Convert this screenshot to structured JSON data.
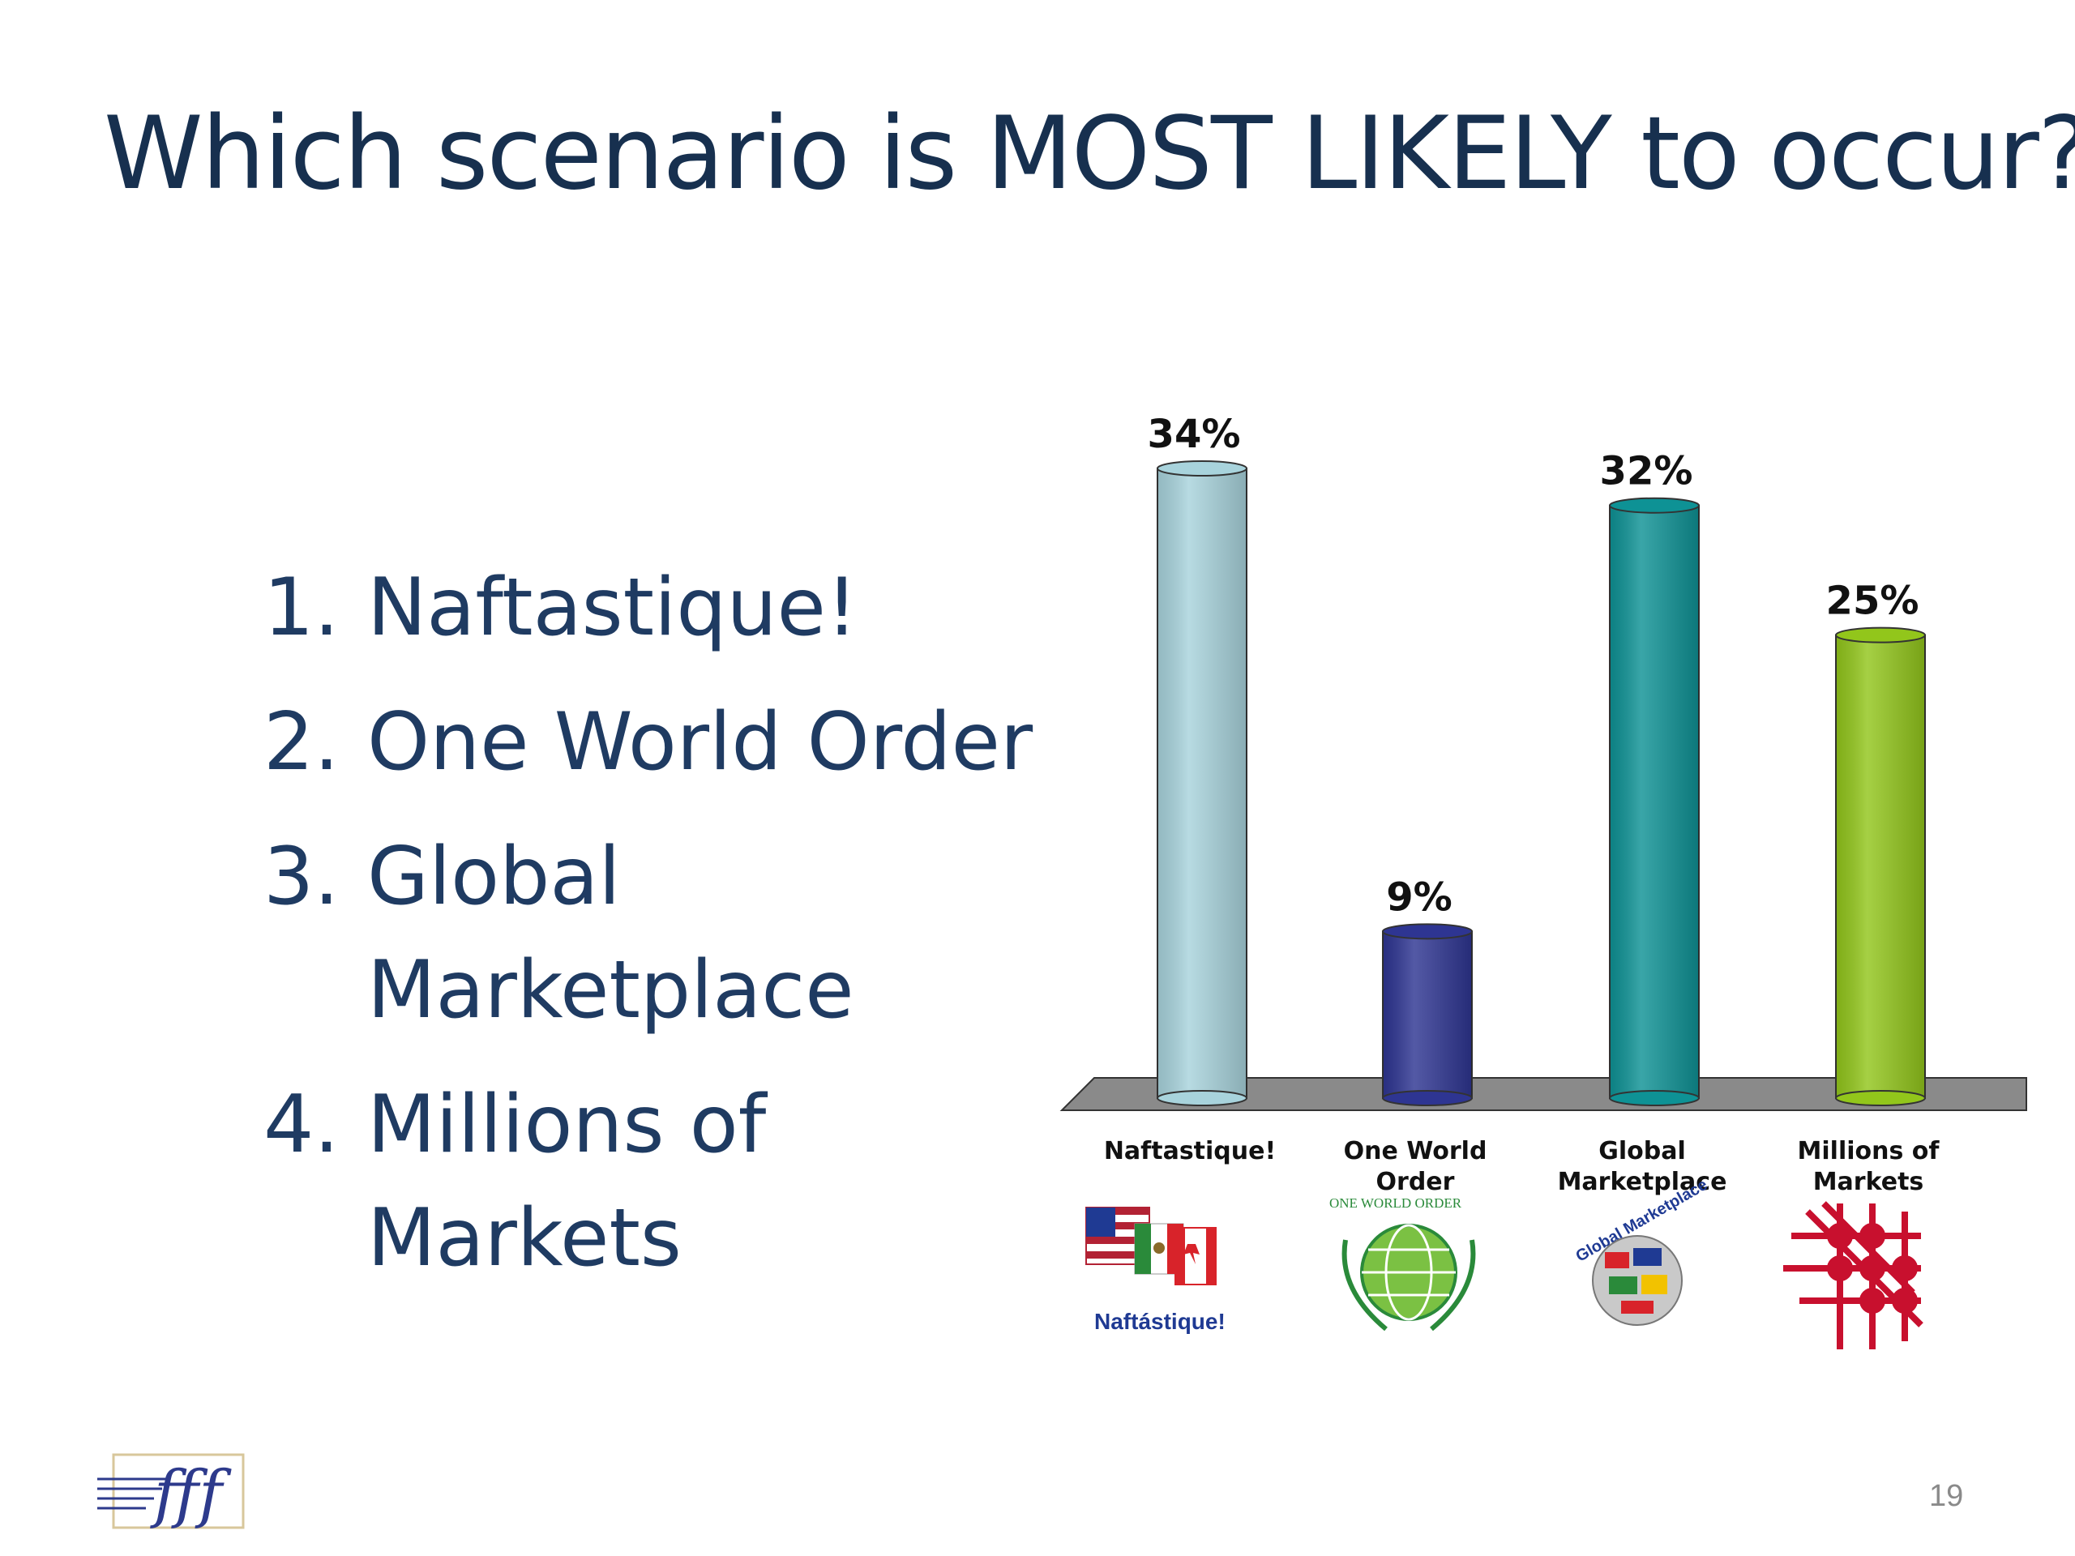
{
  "slide": {
    "title": "Which scenario is MOST LIKELY to occur?",
    "options": [
      {
        "num": "1.",
        "text": "Naftastique!"
      },
      {
        "num": "2.",
        "text": "One World Order"
      },
      {
        "num": "3.",
        "text": "Global Marketplace"
      },
      {
        "num": "4.",
        "text": "Millions of Markets"
      }
    ],
    "page_number": "19",
    "logo_text": "fff"
  },
  "chart_data": {
    "type": "bar",
    "categories": [
      "Naftastique!",
      "One World Order",
      "Global Marketplace",
      "Millions of Markets"
    ],
    "values": [
      34,
      9,
      32,
      25
    ],
    "value_labels": [
      "34%",
      "9%",
      "32%",
      "25%"
    ],
    "colors": [
      "#a8d3dc",
      "#2e3592",
      "#0e9295",
      "#92c61b"
    ],
    "ylim": [
      0,
      34
    ],
    "grid": false,
    "category_images": {
      "Naftastique!": {
        "icon": "nafta-flags-icon",
        "caption": "Naftástique!"
      },
      "One World Order": {
        "icon": "globe-laurel-icon",
        "caption": "ONE WORLD ORDER"
      },
      "Global Marketplace": {
        "icon": "flag-globe-icon",
        "caption": "Global Marketplace"
      },
      "Millions of Markets": {
        "icon": "red-network-icon"
      }
    }
  }
}
